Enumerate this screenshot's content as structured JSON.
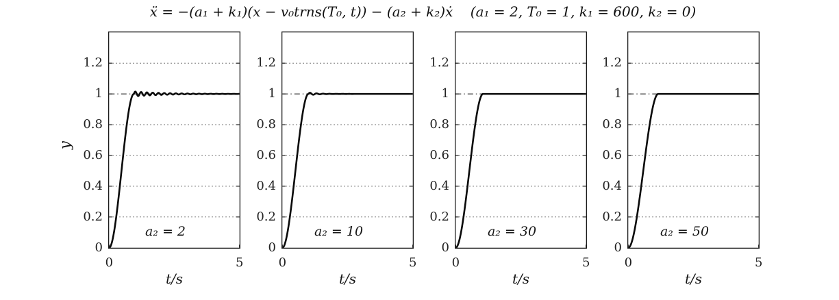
{
  "figure": {
    "background": "#ffffff",
    "line_color": "#0a0a0a",
    "axis_color": "#1a1a1a",
    "grid_color": "#4a4a4a"
  },
  "chart_data": {
    "type": "line",
    "title": "ẍ = −(a₁ + k₁)(x − v₀trns(T₀, t)) − (a₂ + k₂)ẋ    (a₁ = 2, T₀ = 1, k₁ = 600, k₂ = 0)",
    "xlabel": "t/s",
    "ylabel": "y",
    "xlim": [
      0,
      5
    ],
    "ylim": [
      0,
      1.4
    ],
    "xticks": [
      0,
      5
    ],
    "xtick_labels": [
      "0",
      "5"
    ],
    "yticks": [
      0,
      0.2,
      0.4,
      0.6,
      0.8,
      1,
      1.2
    ],
    "ytick_labels": [
      "0",
      "0.2",
      "0.4",
      "0.6",
      "0.8",
      "1",
      "1.2"
    ],
    "grid": "dotted horizontal lines at yticks 0.2–1.2",
    "legend": "none",
    "refline": {
      "y": 1,
      "style": "dash-dot",
      "color": "#111111"
    },
    "curve_description": "step-tracking response rising from y=0 at t=0 to y=1 at about t=1 s, then settling at 1; smaller a2 gives residual decaying oscillation about y=1",
    "subplots": [
      {
        "annotation": "a₂ = 2",
        "a2": 2,
        "rise_time": 0.95,
        "osc_amp": 0.016,
        "osc_freq": 4.5,
        "osc_decay": 0.9,
        "keypoints": [
          [
            0,
            0
          ],
          [
            0.25,
            0.15
          ],
          [
            0.5,
            0.5
          ],
          [
            0.75,
            0.85
          ],
          [
            0.95,
            1.0
          ],
          [
            1.1,
            1.02
          ],
          [
            2,
            1.0
          ],
          [
            5,
            1.0
          ]
        ]
      },
      {
        "annotation": "a₂ = 10",
        "a2": 10,
        "rise_time": 1.0,
        "osc_amp": 0.009,
        "osc_freq": 4.0,
        "osc_decay": 3.0,
        "keypoints": [
          [
            0,
            0
          ],
          [
            0.26,
            0.15
          ],
          [
            0.52,
            0.5
          ],
          [
            0.78,
            0.85
          ],
          [
            1.0,
            1.0
          ],
          [
            1.1,
            1.01
          ],
          [
            2,
            1.0
          ],
          [
            5,
            1.0
          ]
        ]
      },
      {
        "annotation": "a₂ = 30",
        "a2": 30,
        "rise_time": 1.05,
        "osc_amp": 0,
        "osc_freq": 0,
        "osc_decay": 0,
        "keypoints": [
          [
            0,
            0
          ],
          [
            0.27,
            0.15
          ],
          [
            0.55,
            0.5
          ],
          [
            0.82,
            0.85
          ],
          [
            1.05,
            1.0
          ],
          [
            5,
            1.0
          ]
        ]
      },
      {
        "annotation": "a₂ = 50",
        "a2": 50,
        "rise_time": 1.15,
        "osc_amp": 0,
        "osc_freq": 0,
        "osc_decay": 0,
        "keypoints": [
          [
            0,
            0
          ],
          [
            0.3,
            0.15
          ],
          [
            0.6,
            0.5
          ],
          [
            0.9,
            0.85
          ],
          [
            1.15,
            1.0
          ],
          [
            5,
            1.0
          ]
        ]
      }
    ]
  }
}
